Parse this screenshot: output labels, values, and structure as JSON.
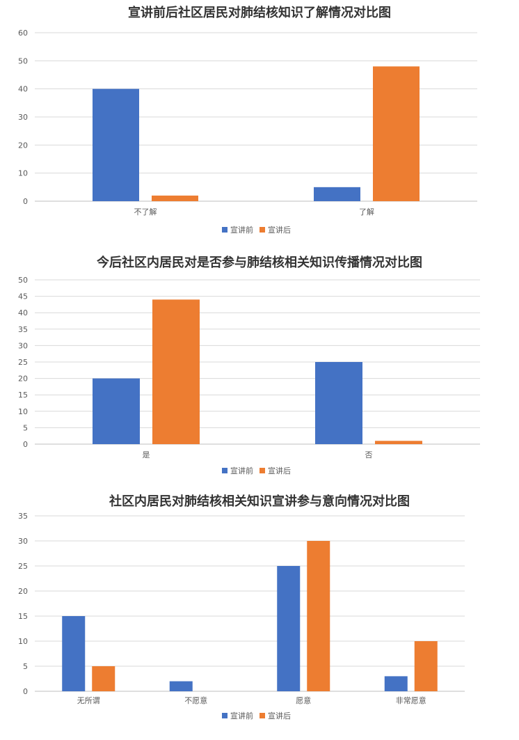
{
  "chart_data": [
    {
      "type": "bar",
      "title": "宣讲前后社区居民对肺结核知识了解情况对比图",
      "categories": [
        "不了解",
        "了解"
      ],
      "series": [
        {
          "name": "宣讲前",
          "values": [
            40,
            5
          ],
          "color": "#4472C4"
        },
        {
          "name": "宣讲后",
          "values": [
            2,
            48
          ],
          "color": "#ED7D31"
        }
      ],
      "ylim": [
        0,
        60
      ],
      "ytick_step": 10,
      "grid": true,
      "legend": "bottom"
    },
    {
      "type": "bar",
      "title": "今后社区内居民对是否参与肺结核相关知识传播情况对比图",
      "categories": [
        "是",
        "否"
      ],
      "series": [
        {
          "name": "宣讲前",
          "values": [
            20,
            25
          ],
          "color": "#4472C4"
        },
        {
          "name": "宣讲后",
          "values": [
            44,
            1
          ],
          "color": "#ED7D31"
        }
      ],
      "ylim": [
        0,
        50
      ],
      "ytick_step": 5,
      "grid": true,
      "legend": "bottom"
    },
    {
      "type": "bar",
      "title": "社区内居民对肺结核相关知识宣讲参与意向情况对比图",
      "categories": [
        "无所谓",
        "不愿意",
        "愿意",
        "非常愿意"
      ],
      "series": [
        {
          "name": "宣讲前",
          "values": [
            15,
            2,
            25,
            3
          ],
          "color": "#4472C4"
        },
        {
          "name": "宣讲后",
          "values": [
            5,
            0,
            30,
            10
          ],
          "color": "#ED7D31"
        }
      ],
      "ylim": [
        0,
        35
      ],
      "ytick_step": 5,
      "grid": true,
      "legend": "bottom"
    }
  ]
}
